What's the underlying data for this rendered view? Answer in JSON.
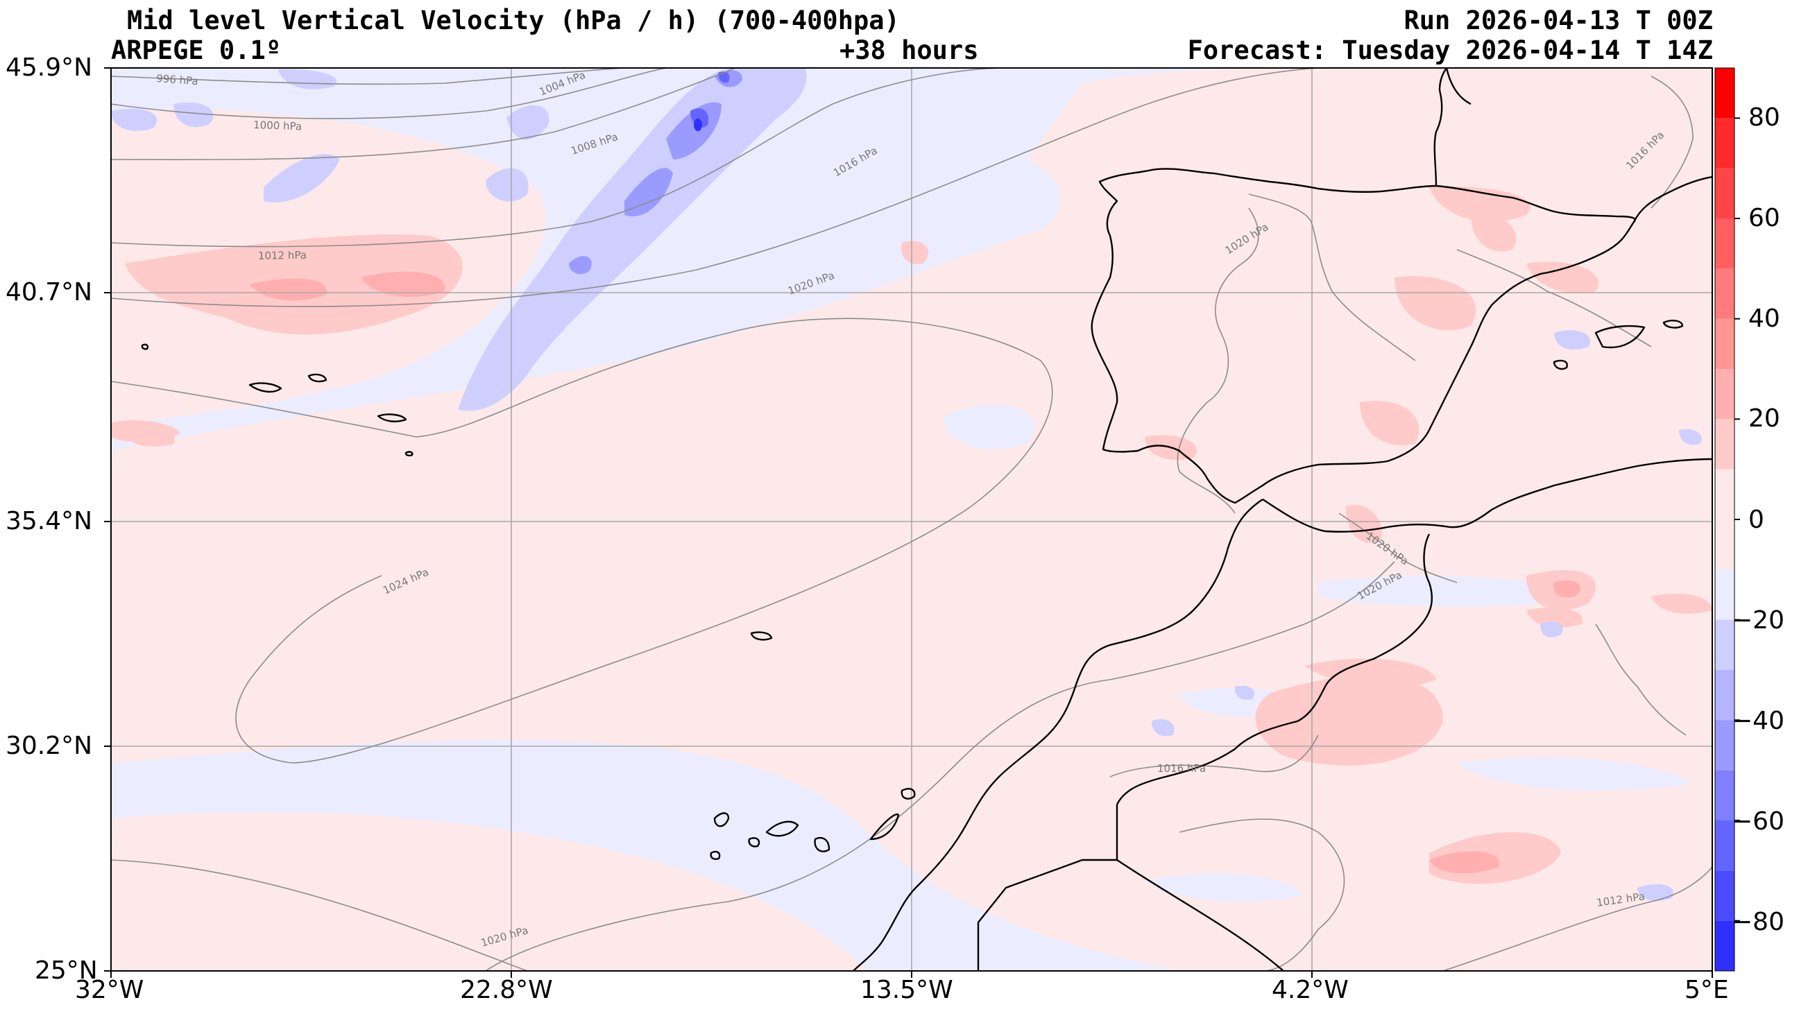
{
  "header": {
    "title": "Mid level Vertical Velocity (hPa / h)  (700-400hpa)",
    "model": "ARPEGE 0.1º",
    "lead": "+38 hours",
    "run": "Run 2026-04-13 T 00Z",
    "forecast": "Forecast: Tuesday 2026-04-14 T 14Z"
  },
  "axes": {
    "lat_labels": [
      "45.9°N",
      "40.7°N",
      "35.4°N",
      "30.2°N",
      "25°N"
    ],
    "lon_labels": [
      "32°W",
      "22.8°W",
      "13.5°W",
      "4.2°W",
      "5°E"
    ]
  },
  "isobar_labels": [
    "996 hPa",
    "1000 hPa",
    "1004 hPa",
    "1008 hPa",
    "1012 hPa",
    "1016 hPa",
    "1020 hPa",
    "1024 hPa",
    "1020 hPa",
    "1016 hPa",
    "1020 hPa",
    "1020 hPa",
    "1020 hPa",
    "1016 hPa",
    "1012 hPa"
  ],
  "colorbar": {
    "tick_labels": [
      "80",
      "60",
      "40",
      "20",
      "0",
      "−20",
      "−40",
      "−60",
      "−80"
    ],
    "levels": [
      90,
      80,
      70,
      60,
      50,
      40,
      30,
      20,
      10,
      -10,
      -20,
      -30,
      -40,
      -50,
      -60,
      -70,
      -80,
      -90
    ],
    "colors": [
      "#ff0000",
      "#ff2a2a",
      "#ff4545",
      "#ff5f5f",
      "#ff7a7a",
      "#ff9595",
      "#ffafaf",
      "#ffcaca",
      "#fde9e9",
      "#ececff",
      "#cfcfff",
      "#b4b4ff",
      "#9a9aff",
      "#7f7fff",
      "#6464ff",
      "#4a4aff",
      "#2f2fff",
      "#0000ff"
    ]
  },
  "colors": {
    "positive_light": "#fde9e9",
    "positive_medium": "#ffcaca",
    "negative_light": "#ececff",
    "negative_medium": "#cfcfff",
    "coast": "#000000",
    "isobar": "#8c8c8c",
    "grid": "#a8a8a8"
  }
}
